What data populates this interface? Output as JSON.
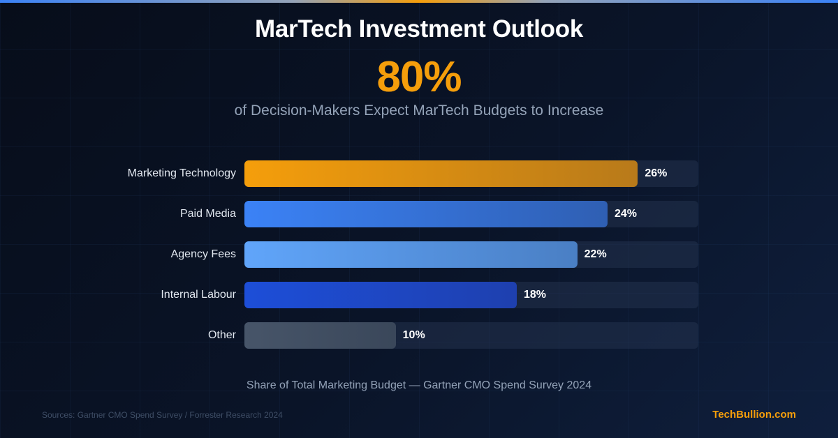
{
  "header": {
    "title": "MarTech Investment Outlook",
    "headline_stat": "80%",
    "subtitle": "of Decision-Makers Expect MarTech Budgets to Increase"
  },
  "colors": {
    "accent": "#f59e0b",
    "background": "#0a1428",
    "track": "#1e293b"
  },
  "chart_data": {
    "type": "bar",
    "orientation": "horizontal",
    "title": "MarTech Investment Outlook",
    "xlabel": "Share of Total Marketing Budget — Gartner CMO Spend Survey 2024",
    "ylabel": "",
    "xlim": [
      0,
      30
    ],
    "unit": "%",
    "grid": false,
    "legend": "none",
    "categories": [
      "Marketing Technology",
      "Paid Media",
      "Agency Fees",
      "Internal Labour",
      "Other"
    ],
    "values": [
      26,
      24,
      22,
      18,
      10
    ],
    "value_labels": [
      "26%",
      "24%",
      "22%",
      "18%",
      "10%"
    ],
    "bar_colors": [
      [
        "#f59e0b",
        "#b87a1a"
      ],
      [
        "#3b82f6",
        "#2f5fb3"
      ],
      [
        "#60a5fa",
        "#4a7fc4"
      ],
      [
        "#1d4ed8",
        "#1e40af"
      ],
      [
        "#475569",
        "#3a475a"
      ]
    ]
  },
  "footer": {
    "caption": "Share of Total Marketing Budget — Gartner CMO Spend Survey 2024",
    "sources": "Sources: Gartner CMO Spend Survey / Forrester Research 2024",
    "brand": "TechBullion.com"
  }
}
